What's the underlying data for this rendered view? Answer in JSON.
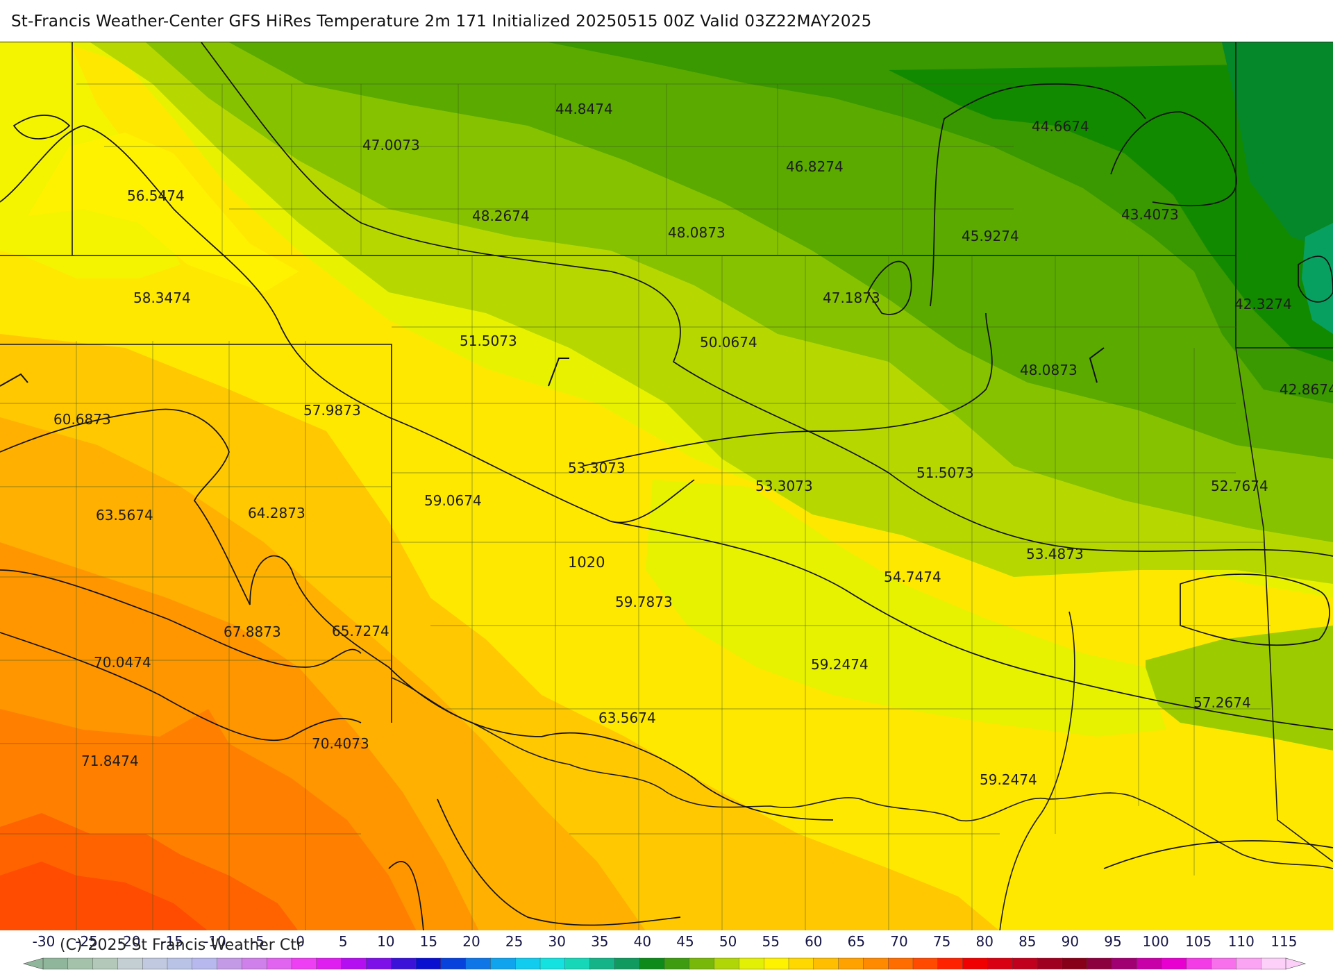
{
  "title": "St-Francis Weather-Center GFS HiRes Temperature 2m  171 Initialized 20250515 00Z Valid 03Z22MAY2025",
  "copyright": "(C)-2025 St Francis Weather Ctr",
  "isobar_label": "1020",
  "temperature_labels": [
    "44.8474",
    "47.0073",
    "56.5474",
    "48.2674",
    "48.0873",
    "46.8274",
    "44.6674",
    "45.9274",
    "43.4073",
    "58.3474",
    "51.5073",
    "50.0674",
    "47.1873",
    "42.3274",
    "48.0873",
    "42.8674",
    "60.6873",
    "57.9873",
    "53.3073",
    "53.3073",
    "51.5073",
    "52.7674",
    "63.5674",
    "64.2873",
    "59.0674",
    "53.4873",
    "54.7474",
    "59.7873",
    "67.8873",
    "65.7274",
    "70.0474",
    "59.2474",
    "57.2674",
    "63.5674",
    "70.4073",
    "71.8474",
    "59.2474"
  ],
  "legend": {
    "ticks": [
      "-30",
      "-25",
      "-20",
      "-15",
      "-10",
      "-5",
      "0",
      "5",
      "10",
      "15",
      "20",
      "25",
      "30",
      "35",
      "40",
      "45",
      "50",
      "55",
      "60",
      "65",
      "70",
      "75",
      "80",
      "85",
      "90",
      "95",
      "100",
      "105",
      "110",
      "115"
    ],
    "colors": [
      "#8fb59a",
      "#a4c2aa",
      "#b3c8b9",
      "#c3cfd3",
      "#c0c9df",
      "#b9c3e6",
      "#b7b9ee",
      "#c39ae6",
      "#cf80ea",
      "#e064f0",
      "#ef3ff4",
      "#df1ff0",
      "#b40ff0",
      "#7d11e8",
      "#3a12d8",
      "#0a10d0",
      "#0842dc",
      "#0e76e6",
      "#10a4ee",
      "#12ccf0",
      "#14e2e0",
      "#16d8b8",
      "#14b488",
      "#109a60",
      "#0d8a1a",
      "#3e9c10",
      "#78b80a",
      "#b0d608",
      "#e2f006",
      "#fff200",
      "#ffd800",
      "#ffbf00",
      "#ffa200",
      "#ff8a00",
      "#ff6c00",
      "#ff4a00",
      "#ff2200",
      "#f00000",
      "#d80012",
      "#c0001c",
      "#a00020",
      "#880018",
      "#8c0040",
      "#a00072",
      "#c800a8",
      "#e800d0",
      "#f43ce6",
      "#f870ec",
      "#fca4f4",
      "#fcd0f8"
    ]
  }
}
